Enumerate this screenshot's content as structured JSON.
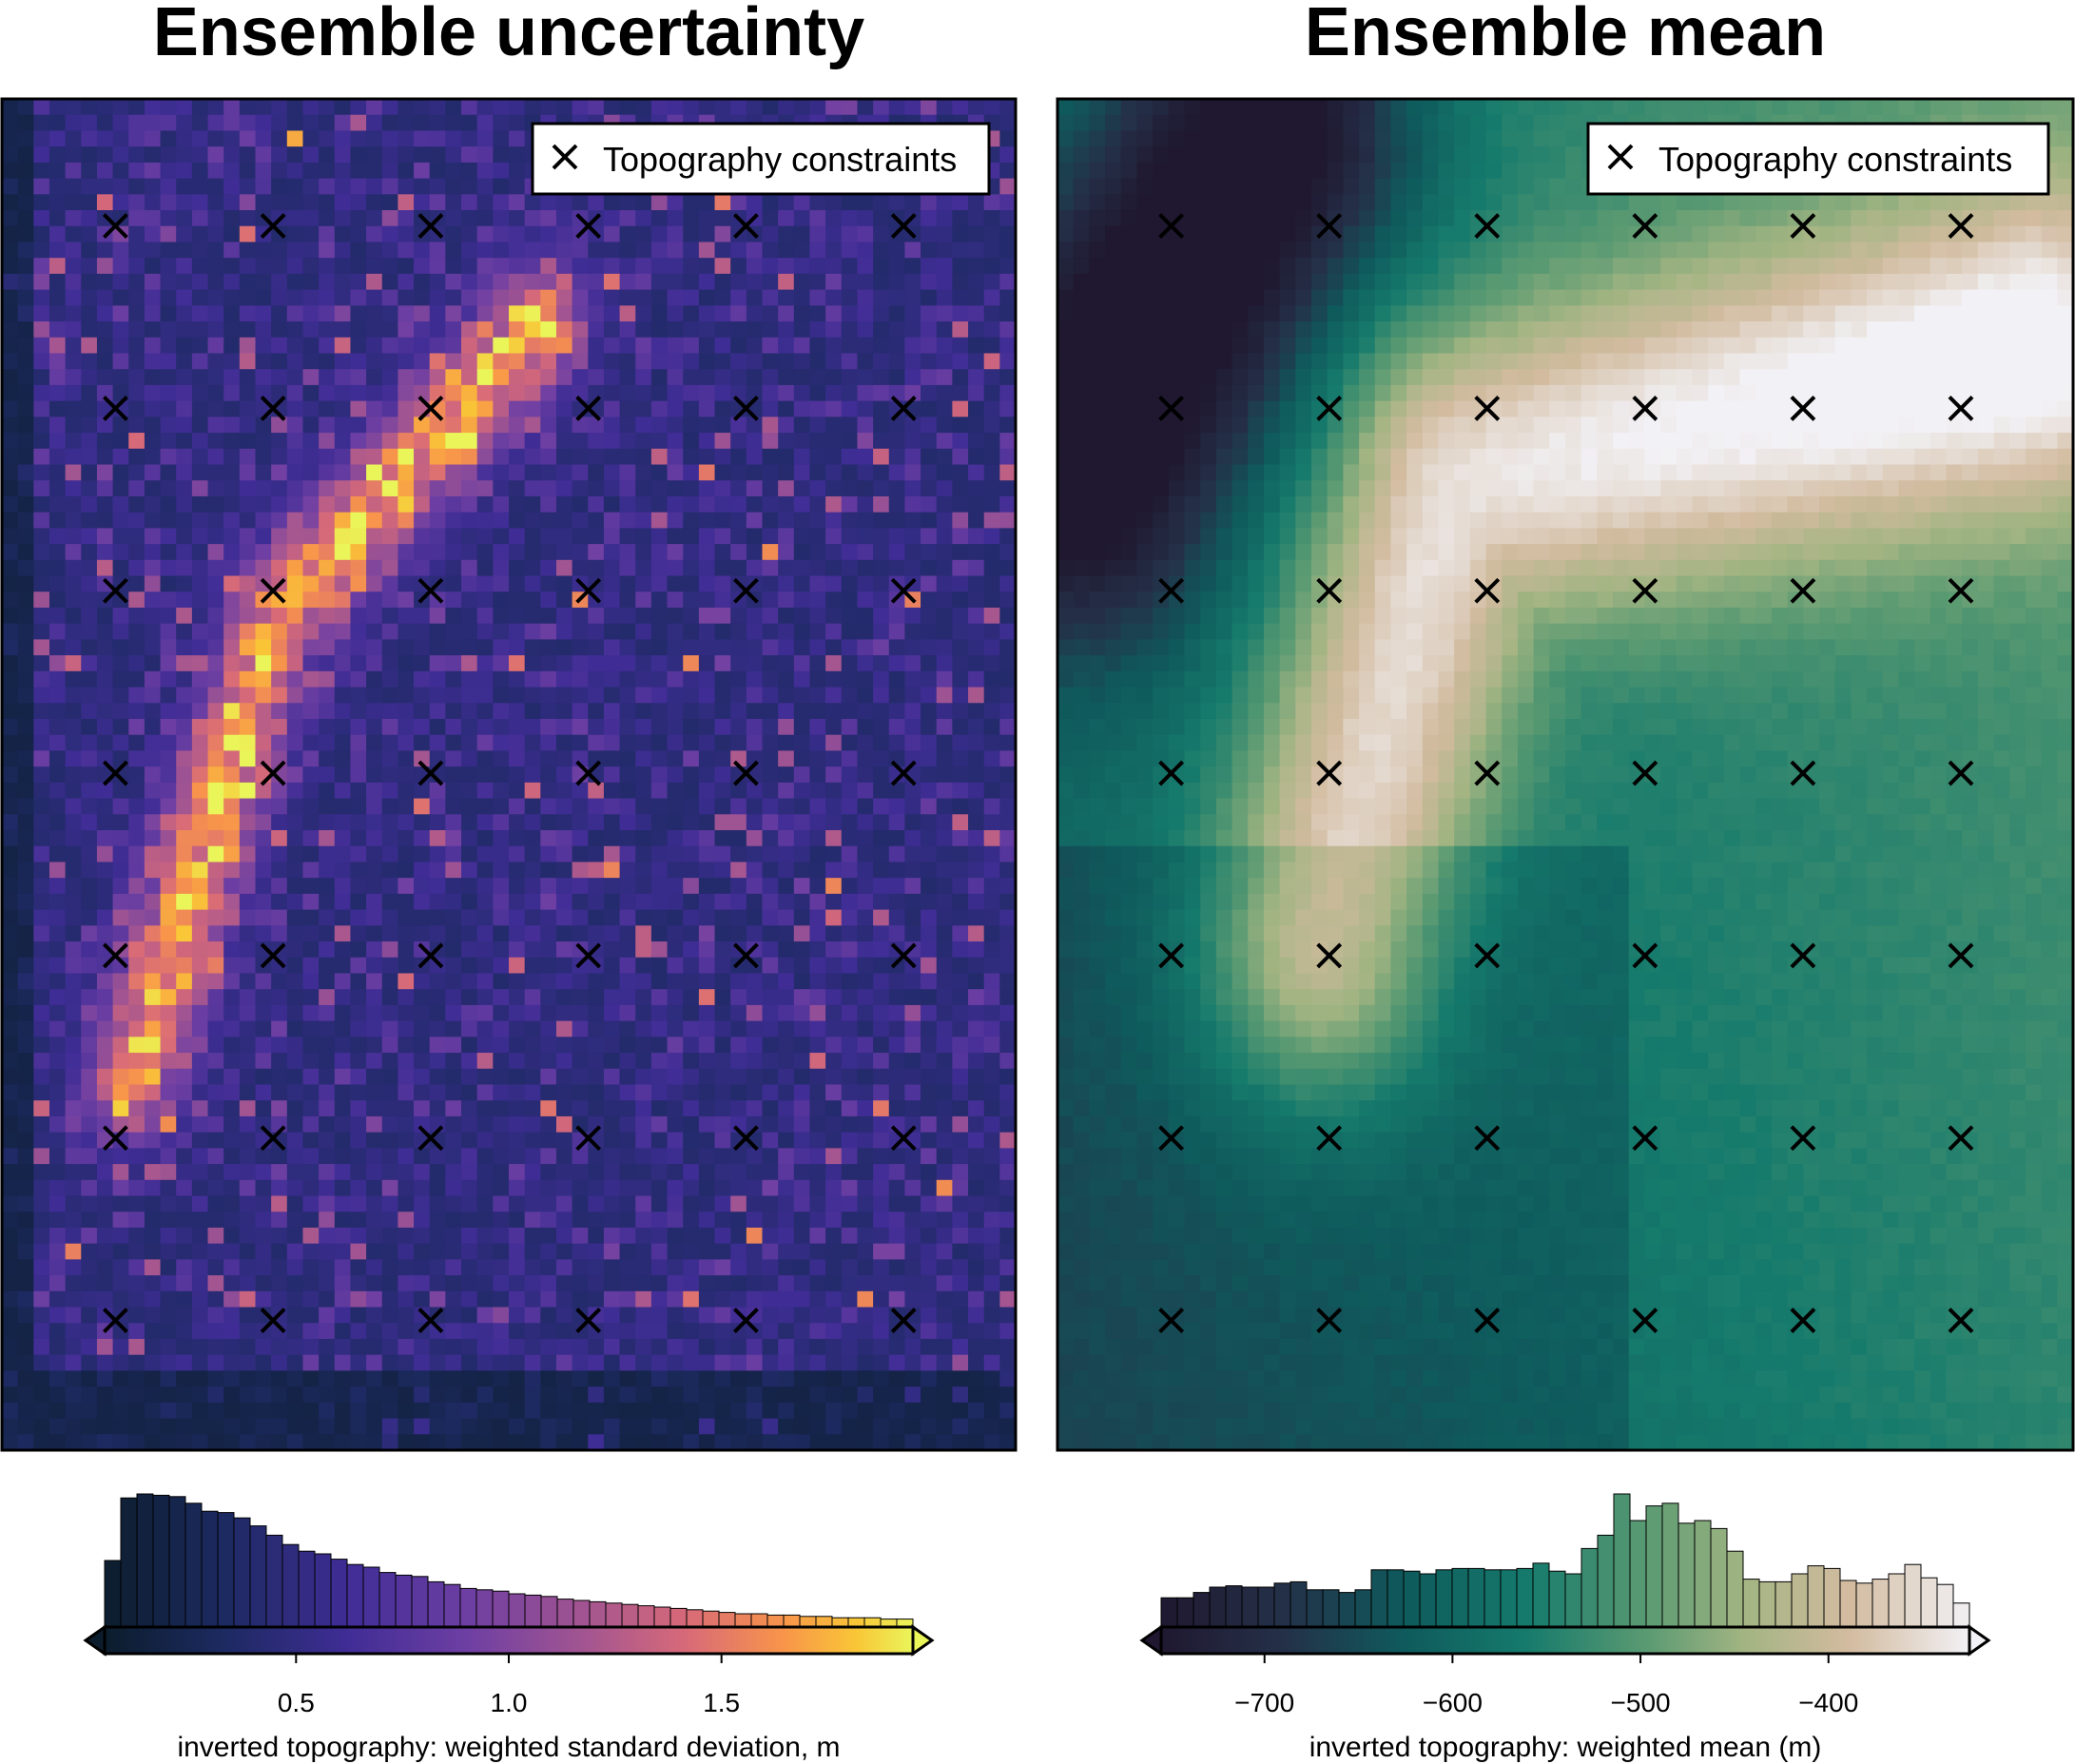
{
  "chart_data": [
    {
      "type": "heatmap",
      "title": "Ensemble uncertainty",
      "colormap": "plasma-like (dark navy → indigo → purple → pink → orange → yellow)",
      "colorbar": {
        "label": "inverted topography: weighted standard deviation, m",
        "range": [
          0.05,
          1.95
        ],
        "ticks": [
          0.5,
          1.0,
          1.5
        ],
        "tick_labels": [
          "0.5",
          "1.0",
          "1.5"
        ],
        "extend": "both",
        "histogram_counts": [
          50,
          97,
          100,
          99,
          98,
          93,
          87,
          86,
          82,
          76,
          69,
          62,
          57,
          55,
          51,
          47,
          45,
          41,
          39,
          38,
          34,
          32,
          29,
          28,
          27,
          25,
          24,
          23,
          21,
          20,
          19,
          18,
          17,
          16,
          15,
          14,
          13,
          12,
          11,
          10,
          10,
          9,
          9,
          8,
          8,
          7,
          7,
          7,
          6,
          6
        ]
      },
      "pattern": "high uncertainty concentrated along a curved band from upper-centre to lower-left; low values elsewhere",
      "legend": {
        "label": "Topography constraints",
        "placement": "top-right",
        "marker": "x"
      },
      "constraints": {
        "columns": 6,
        "rows": 7
      }
    },
    {
      "type": "heatmap",
      "title": "Ensemble mean",
      "colormap": "cmocean rain-like (dark purple → teal → green → tan → near-white)",
      "colorbar": {
        "label": "inverted topography: weighted mean (m)",
        "range": [
          -755,
          -325
        ],
        "ticks": [
          -700,
          -600,
          -500,
          -400
        ],
        "tick_labels": [
          "−700",
          "−600",
          "−500",
          "−400"
        ],
        "extend": "both",
        "histogram_counts": [
          22,
          22,
          26,
          30,
          31,
          30,
          30,
          33,
          34,
          28,
          28,
          26,
          28,
          43,
          43,
          42,
          40,
          43,
          44,
          44,
          43,
          43,
          44,
          48,
          42,
          40,
          59,
          69,
          100,
          80,
          91,
          93,
          78,
          80,
          74,
          57,
          36,
          34,
          34,
          40,
          46,
          44,
          35,
          33,
          36,
          40,
          47,
          37,
          32,
          18
        ]
      },
      "pattern": "deep (dark) in upper-left, shallow (near-white) ridge across the centre-top, mid-depth teal in the lower half",
      "legend": {
        "label": "Topography constraints",
        "placement": "top-right",
        "marker": "x"
      },
      "constraints": {
        "columns": 6,
        "rows": 7
      }
    }
  ]
}
